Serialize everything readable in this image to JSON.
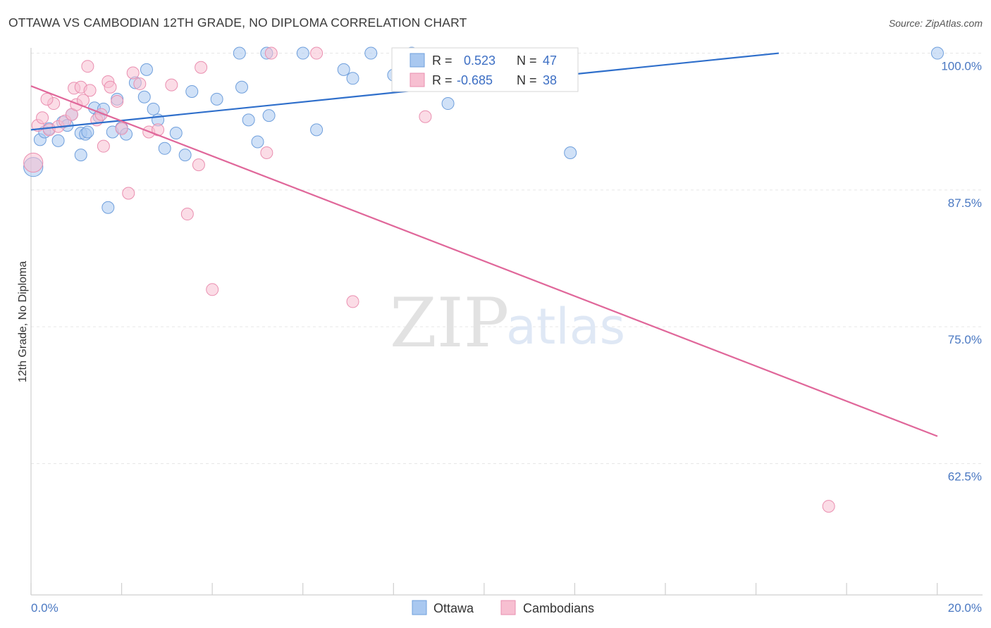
{
  "title": "OTTAWA VS CAMBODIAN 12TH GRADE, NO DIPLOMA CORRELATION CHART",
  "source": "Source: ZipAtlas.com",
  "colors": {
    "ottawa_fill": "#a9c8f0",
    "ottawa_stroke": "#6f9fdc",
    "ottawa_line": "#2f6fcb",
    "cambodian_fill": "#f7bfd1",
    "cambodian_stroke": "#ea8fb0",
    "cambodian_line": "#e0679a",
    "tick_text": "#4a78c2",
    "grid": "#e6e6e6"
  },
  "legend": {
    "r_label": "R =",
    "n_label": "N =",
    "ottawa": {
      "r": "0.523",
      "n": "47"
    },
    "cambodian": {
      "r": "-0.685",
      "n": "38"
    }
  },
  "watermark": {
    "zip": "ZIP",
    "atlas": "atlas"
  },
  "chart_data": {
    "type": "scatter",
    "xlabel": "",
    "ylabel": "12th Grade, No Diploma",
    "xlim": [
      0,
      20
    ],
    "ylim": [
      50.5,
      101
    ],
    "x_tick_labels": [
      {
        "value": 0,
        "label": "0.0%"
      },
      {
        "value": 20,
        "label": "20.0%"
      }
    ],
    "y_tick_labels": [
      {
        "value": 100,
        "label": "100.0%"
      },
      {
        "value": 87.5,
        "label": "87.5%"
      },
      {
        "value": 75,
        "label": "75.0%"
      },
      {
        "value": 62.5,
        "label": "62.5%"
      }
    ],
    "series": [
      {
        "name": "Ottawa",
        "trend": [
          [
            0,
            93.0
          ],
          [
            16.5,
            100.0
          ]
        ],
        "points": [
          [
            0.05,
            89.6,
            1.6
          ],
          [
            0.2,
            92.1,
            1
          ],
          [
            0.3,
            92.8,
            1
          ],
          [
            0.4,
            93.1,
            1
          ],
          [
            0.6,
            92.0,
            1
          ],
          [
            0.7,
            93.7,
            1
          ],
          [
            0.8,
            93.4,
            1
          ],
          [
            0.9,
            94.4,
            1
          ],
          [
            1.1,
            92.7,
            1
          ],
          [
            1.1,
            90.7,
            1
          ],
          [
            1.2,
            92.6,
            1
          ],
          [
            1.25,
            92.8,
            1
          ],
          [
            1.4,
            95.0,
            1
          ],
          [
            1.5,
            94.2,
            1
          ],
          [
            1.6,
            94.9,
            1
          ],
          [
            1.7,
            85.9,
            1
          ],
          [
            1.8,
            92.8,
            1
          ],
          [
            1.9,
            95.8,
            1
          ],
          [
            2.0,
            93.2,
            1
          ],
          [
            2.1,
            92.6,
            1
          ],
          [
            2.3,
            97.3,
            1
          ],
          [
            2.5,
            96.0,
            1
          ],
          [
            2.55,
            98.5,
            1
          ],
          [
            2.7,
            94.9,
            1
          ],
          [
            2.8,
            93.9,
            1
          ],
          [
            2.95,
            91.3,
            1
          ],
          [
            3.2,
            92.7,
            1
          ],
          [
            3.4,
            90.7,
            1
          ],
          [
            3.55,
            96.5,
            1
          ],
          [
            4.1,
            95.8,
            1
          ],
          [
            4.6,
            100.0,
            1
          ],
          [
            4.65,
            96.9,
            1
          ],
          [
            4.8,
            93.9,
            1
          ],
          [
            5.0,
            91.9,
            1
          ],
          [
            5.2,
            100.0,
            1
          ],
          [
            5.25,
            94.3,
            1
          ],
          [
            6.0,
            100.0,
            1
          ],
          [
            6.3,
            93.0,
            1
          ],
          [
            6.9,
            98.5,
            1
          ],
          [
            7.1,
            97.7,
            1
          ],
          [
            8.4,
            100.0,
            1
          ],
          [
            9.2,
            95.4,
            1
          ],
          [
            11.9,
            90.9,
            1
          ],
          [
            20.0,
            100.0,
            1
          ],
          [
            7.5,
            100.0,
            1
          ],
          [
            8.0,
            98.0,
            1
          ],
          [
            10.8,
            99.7,
            1
          ]
        ]
      },
      {
        "name": "Cambodians",
        "trend": [
          [
            0,
            97.0
          ],
          [
            20.0,
            65.0
          ]
        ],
        "points": [
          [
            0.05,
            90.0,
            1.6
          ],
          [
            0.15,
            93.4,
            1
          ],
          [
            0.25,
            94.1,
            1
          ],
          [
            0.4,
            93.0,
            1
          ],
          [
            0.5,
            95.4,
            1
          ],
          [
            0.6,
            93.3,
            1
          ],
          [
            0.75,
            93.8,
            1
          ],
          [
            0.9,
            94.4,
            1
          ],
          [
            0.95,
            96.8,
            1
          ],
          [
            1.0,
            95.3,
            1
          ],
          [
            1.1,
            96.9,
            1
          ],
          [
            1.15,
            95.7,
            1
          ],
          [
            1.25,
            98.8,
            1
          ],
          [
            1.3,
            96.6,
            1
          ],
          [
            1.45,
            93.9,
            1
          ],
          [
            1.55,
            94.4,
            1
          ],
          [
            1.6,
            91.5,
            1
          ],
          [
            1.7,
            97.4,
            1
          ],
          [
            1.75,
            96.9,
            1
          ],
          [
            1.9,
            95.6,
            1
          ],
          [
            2.0,
            93.1,
            1
          ],
          [
            2.15,
            87.2,
            1
          ],
          [
            2.25,
            98.2,
            1
          ],
          [
            2.4,
            97.2,
            1
          ],
          [
            2.6,
            92.8,
            1
          ],
          [
            2.8,
            93.0,
            1
          ],
          [
            3.1,
            97.1,
            1
          ],
          [
            3.45,
            85.3,
            1
          ],
          [
            3.7,
            89.8,
            1
          ],
          [
            3.75,
            98.7,
            1
          ],
          [
            4.0,
            78.4,
            1
          ],
          [
            5.2,
            90.9,
            1
          ],
          [
            5.3,
            100.0,
            1
          ],
          [
            6.3,
            100.0,
            1
          ],
          [
            7.1,
            77.3,
            1
          ],
          [
            8.7,
            94.2,
            1
          ],
          [
            17.6,
            58.6,
            1
          ],
          [
            0.35,
            95.8,
            1
          ]
        ]
      }
    ]
  },
  "bottom_legend": [
    {
      "key": "ottawa",
      "label": "Ottawa"
    },
    {
      "key": "cambodian",
      "label": "Cambodians"
    }
  ]
}
